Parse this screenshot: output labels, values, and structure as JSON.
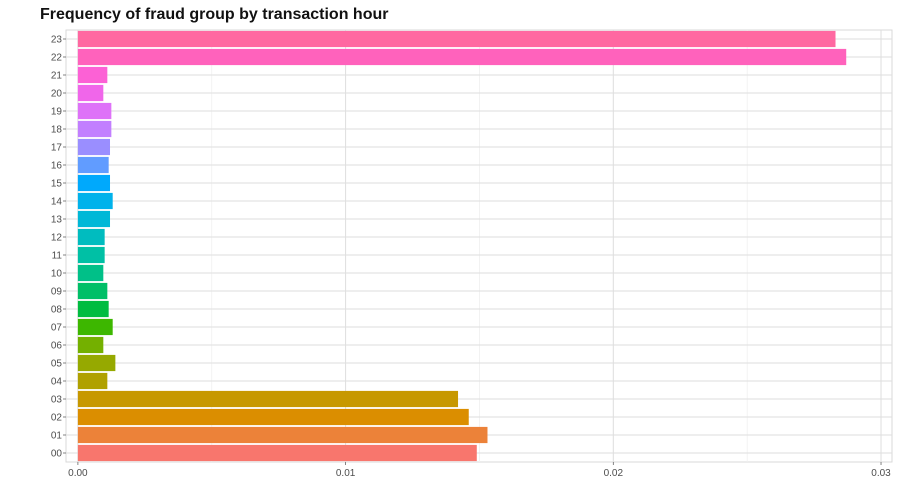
{
  "chart_data": {
    "type": "bar",
    "orientation": "horizontal",
    "title": "Frequency of fraud group by transaction hour",
    "xlabel": "",
    "ylabel": "",
    "xlim": [
      0,
      0.03
    ],
    "x_ticks": [
      "0.00",
      "0.01",
      "0.02",
      "0.03"
    ],
    "x_tick_values": [
      0,
      0.01,
      0.02,
      0.03
    ],
    "grid": true,
    "legend": "none",
    "categories": [
      "00",
      "01",
      "02",
      "03",
      "04",
      "05",
      "06",
      "07",
      "08",
      "09",
      "10",
      "11",
      "12",
      "13",
      "14",
      "15",
      "16",
      "17",
      "18",
      "19",
      "20",
      "21",
      "22",
      "23"
    ],
    "values": [
      0.0149,
      0.0153,
      0.0146,
      0.0142,
      0.0011,
      0.0014,
      0.00095,
      0.0013,
      0.00115,
      0.0011,
      0.00095,
      0.001,
      0.001,
      0.0012,
      0.0013,
      0.0012,
      0.00115,
      0.0012,
      0.00125,
      0.00125,
      0.00095,
      0.0011,
      0.0287,
      0.0283
    ],
    "colors": [
      "#F8766D",
      "#EC8239",
      "#DB8E00",
      "#C79800",
      "#B0A100",
      "#96A900",
      "#74B000",
      "#3DB700",
      "#00BC40",
      "#00BF67",
      "#00C088",
      "#00C0A5",
      "#00BCBF",
      "#00B8D7",
      "#00B2EB",
      "#00A9FC",
      "#619CFF",
      "#9A8EFF",
      "#C27FFF",
      "#DE72F8",
      "#F066EA",
      "#FC61D5",
      "#FF62BC",
      "#FF68A1"
    ]
  }
}
